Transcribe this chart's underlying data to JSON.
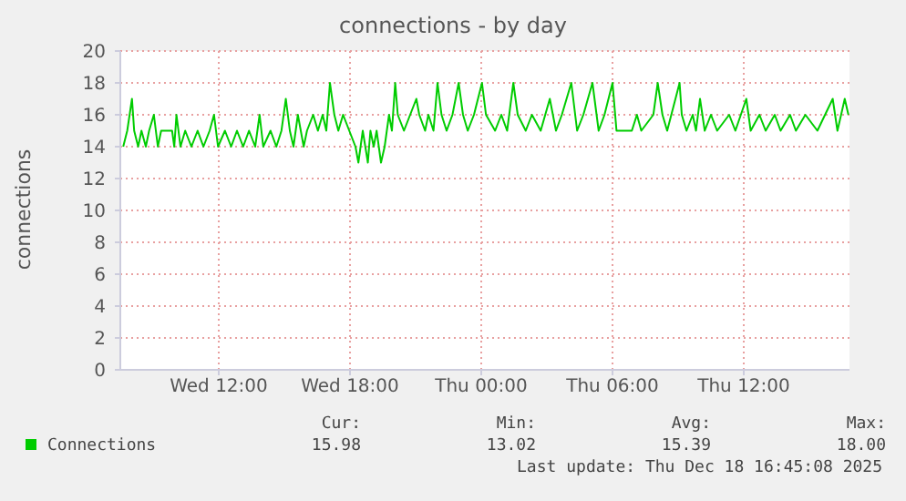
{
  "chart_data": {
    "type": "line",
    "title": "connections - by day",
    "ylabel": "connections",
    "xlim": [
      "2025-12-17T07:30",
      "2025-12-18T16:50"
    ],
    "ylim": [
      0,
      20
    ],
    "yticks": [
      0,
      2,
      4,
      6,
      8,
      10,
      12,
      14,
      16,
      18,
      20
    ],
    "xticks": [
      {
        "value": "2025-12-17T12:00",
        "label": "Wed 12:00"
      },
      {
        "value": "2025-12-17T18:00",
        "label": "Wed 18:00"
      },
      {
        "value": "2025-12-18T00:00",
        "label": "Thu 00:00"
      },
      {
        "value": "2025-12-18T06:00",
        "label": "Thu 06:00"
      },
      {
        "value": "2025-12-18T12:00",
        "label": "Thu 12:00"
      }
    ],
    "grid": true,
    "legend": "bottom",
    "marker": "none",
    "line_style": "solid",
    "series": [
      {
        "name": "Connections",
        "color": "#00cc00",
        "x": [
          "2025-12-17T07:38",
          "2025-12-17T07:49",
          "2025-12-17T08:02",
          "2025-12-17T08:08",
          "2025-12-17T08:19",
          "2025-12-17T08:28",
          "2025-12-17T08:40",
          "2025-12-17T08:49",
          "2025-12-17T09:02",
          "2025-12-17T09:13",
          "2025-12-17T09:22",
          "2025-12-17T09:52",
          "2025-12-17T09:58",
          "2025-12-17T10:04",
          "2025-12-17T10:15",
          "2025-12-17T10:28",
          "2025-12-17T10:45",
          "2025-12-17T11:02",
          "2025-12-17T11:18",
          "2025-12-17T11:35",
          "2025-12-17T11:47",
          "2025-12-17T11:58",
          "2025-12-17T12:17",
          "2025-12-17T12:34",
          "2025-12-17T12:50",
          "2025-12-17T13:07",
          "2025-12-17T13:23",
          "2025-12-17T13:40",
          "2025-12-17T13:52",
          "2025-12-17T14:02",
          "2025-12-17T14:22",
          "2025-12-17T14:38",
          "2025-12-17T14:52",
          "2025-12-17T15:04",
          "2025-12-17T15:15",
          "2025-12-17T15:25",
          "2025-12-17T15:37",
          "2025-12-17T15:53",
          "2025-12-17T16:02",
          "2025-12-17T16:19",
          "2025-12-17T16:32",
          "2025-12-17T16:45",
          "2025-12-17T16:55",
          "2025-12-17T17:05",
          "2025-12-17T17:17",
          "2025-12-17T17:28",
          "2025-12-17T17:41",
          "2025-12-17T17:58",
          "2025-12-17T18:15",
          "2025-12-17T18:23",
          "2025-12-17T18:35",
          "2025-12-17T18:49",
          "2025-12-17T18:56",
          "2025-12-17T19:05",
          "2025-12-17T19:13",
          "2025-12-17T19:25",
          "2025-12-17T19:35",
          "2025-12-17T19:47",
          "2025-12-17T19:55",
          "2025-12-17T20:04",
          "2025-12-17T20:11",
          "2025-12-17T20:28",
          "2025-12-17T20:45",
          "2025-12-17T21:02",
          "2025-12-17T21:10",
          "2025-12-17T21:26",
          "2025-12-17T21:35",
          "2025-12-17T21:49",
          "2025-12-17T22:00",
          "2025-12-17T22:11",
          "2025-12-17T22:25",
          "2025-12-17T22:41",
          "2025-12-17T22:58",
          "2025-12-17T23:10",
          "2025-12-17T23:23",
          "2025-12-17T23:40",
          "2025-12-18T00:02",
          "2025-12-18T00:13",
          "2025-12-18T00:38",
          "2025-12-18T00:55",
          "2025-12-18T01:11",
          "2025-12-18T01:28",
          "2025-12-18T01:40",
          "2025-12-18T02:02",
          "2025-12-18T02:19",
          "2025-12-18T02:43",
          "2025-12-18T03:08",
          "2025-12-18T03:25",
          "2025-12-18T03:41",
          "2025-12-18T04:07",
          "2025-12-18T04:23",
          "2025-12-18T04:40",
          "2025-12-18T05:05",
          "2025-12-18T05:22",
          "2025-12-18T05:38",
          "2025-12-18T06:00",
          "2025-12-18T06:11",
          "2025-12-18T06:53",
          "2025-12-18T07:07",
          "2025-12-18T07:19",
          "2025-12-18T07:52",
          "2025-12-18T08:04",
          "2025-12-18T08:17",
          "2025-12-18T08:30",
          "2025-12-18T09:04",
          "2025-12-18T09:10",
          "2025-12-18T09:23",
          "2025-12-18T09:40",
          "2025-12-18T09:49",
          "2025-12-18T10:00",
          "2025-12-18T10:13",
          "2025-12-18T10:30",
          "2025-12-18T10:47",
          "2025-12-18T11:20",
          "2025-12-18T11:37",
          "2025-12-18T12:07",
          "2025-12-18T12:19",
          "2025-12-18T12:43",
          "2025-12-18T13:00",
          "2025-12-18T13:25",
          "2025-12-18T13:41",
          "2025-12-18T14:07",
          "2025-12-18T14:23",
          "2025-12-18T14:49",
          "2025-12-18T15:22",
          "2025-12-18T16:04",
          "2025-12-18T16:17",
          "2025-12-18T16:37",
          "2025-12-18T16:47"
        ],
        "values": [
          14,
          15,
          17,
          15,
          14,
          15,
          14,
          15,
          16,
          14,
          15,
          15,
          14,
          16,
          14,
          15,
          14,
          15,
          14,
          15,
          16,
          14,
          15,
          14,
          15,
          14,
          15,
          14,
          16,
          14,
          15,
          14,
          15,
          17,
          15,
          14,
          16,
          14,
          15,
          16,
          15,
          16,
          15,
          18,
          16,
          15,
          16,
          15,
          14,
          13,
          15,
          13,
          15,
          14,
          15,
          13,
          14,
          16,
          15,
          18,
          16,
          15,
          16,
          17,
          16,
          15,
          16,
          15,
          18,
          16,
          15,
          16,
          18,
          16,
          15,
          16,
          18,
          16,
          15,
          16,
          15,
          18,
          16,
          15,
          16,
          15,
          17,
          15,
          16,
          18,
          15,
          16,
          18,
          15,
          16,
          18,
          15,
          15,
          16,
          15,
          16,
          18,
          16,
          15,
          18,
          16,
          15,
          16,
          15,
          17,
          15,
          16,
          15,
          16,
          15,
          17,
          15,
          16,
          15,
          16,
          15,
          16,
          15,
          16,
          15,
          17,
          15,
          17,
          16
        ]
      }
    ],
    "annotations": [
      "Cur:",
      "15.98",
      "Min:",
      "13.02",
      "Avg:",
      "15.39",
      "Max:",
      "18.00",
      "Last update: Thu Dec 18 16:45:08 2025"
    ]
  }
}
